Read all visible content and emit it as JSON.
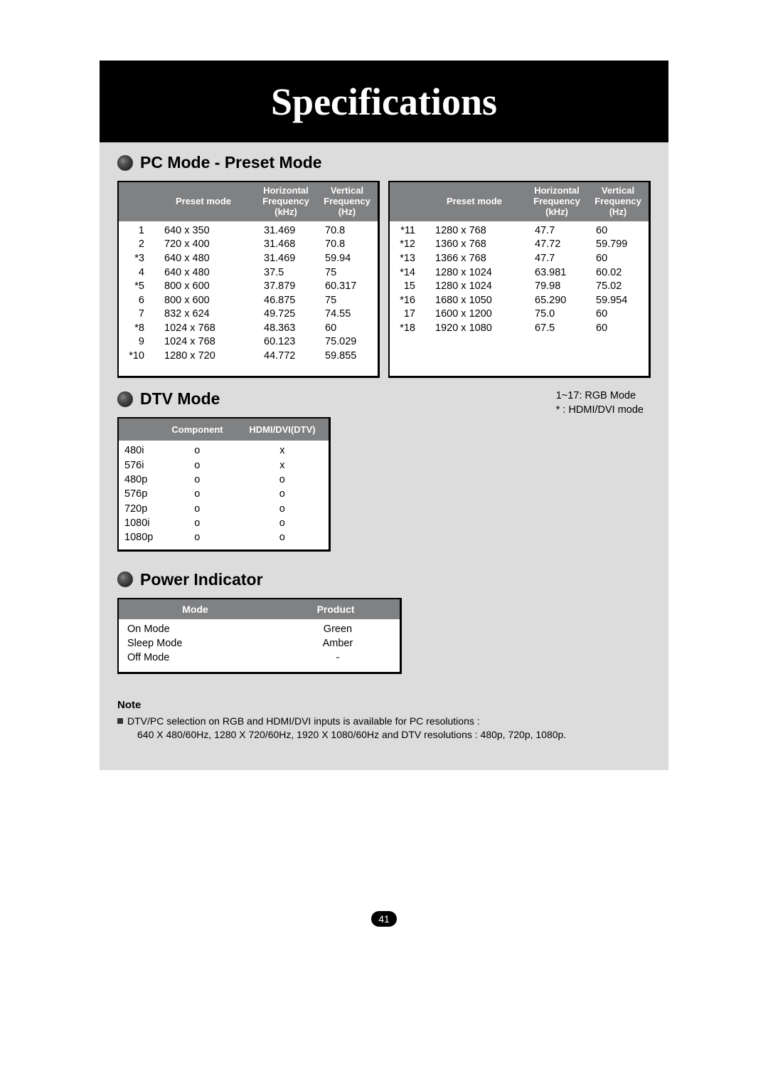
{
  "title": "Specifications",
  "pc_mode": {
    "heading": "PC Mode - Preset Mode",
    "header_preset": "Preset mode",
    "header_horiz_l1": "Horizontal",
    "header_horiz_l2": "Frequency",
    "header_horiz_l3": "(kHz)",
    "header_vert_l1": "Vertical",
    "header_vert_l2": "Frequency",
    "header_vert_l3": "(Hz)",
    "left": [
      {
        "n": "1",
        "res": "640 x 350",
        "h": "31.469",
        "v": "70.8"
      },
      {
        "n": "2",
        "res": "720 x 400",
        "h": "31.468",
        "v": "70.8"
      },
      {
        "n": "*3",
        "res": "640 x 480",
        "h": "31.469",
        "v": "59.94"
      },
      {
        "n": "4",
        "res": "640 x 480",
        "h": "37.5",
        "v": "75"
      },
      {
        "n": "*5",
        "res": "800 x 600",
        "h": "37.879",
        "v": "60.317"
      },
      {
        "n": "6",
        "res": "800 x 600",
        "h": "46.875",
        "v": "75"
      },
      {
        "n": "7",
        "res": "832 x 624",
        "h": "49.725",
        "v": "74.55"
      },
      {
        "n": "*8",
        "res": "1024 x 768",
        "h": "48.363",
        "v": "60"
      },
      {
        "n": "9",
        "res": "1024 x 768",
        "h": "60.123",
        "v": "75.029"
      },
      {
        "n": "*10",
        "res": "1280 x 720",
        "h": "44.772",
        "v": "59.855"
      }
    ],
    "right": [
      {
        "n": "*11",
        "res": "1280 x 768",
        "h": "47.7",
        "v": "60"
      },
      {
        "n": "*12",
        "res": "1360 x 768",
        "h": "47.72",
        "v": "59.799"
      },
      {
        "n": "*13",
        "res": "1366 x 768",
        "h": "47.7",
        "v": "60"
      },
      {
        "n": "*14",
        "res": "1280 x 1024",
        "h": "63.981",
        "v": "60.02"
      },
      {
        "n": "15",
        "res": "1280 x 1024",
        "h": "79.98",
        "v": "75.02"
      },
      {
        "n": "*16",
        "res": "1680 x 1050",
        "h": "65.290",
        "v": "59.954"
      },
      {
        "n": "17",
        "res": "1600 x 1200",
        "h": "75.0",
        "v": "60"
      },
      {
        "n": "*18",
        "res": "1920 x 1080",
        "h": "67.5",
        "v": "60"
      }
    ]
  },
  "dtv": {
    "heading": "DTV Mode",
    "note1": "1~17: RGB Mode",
    "note2": "* : HDMI/DVI mode",
    "col_component": "Component",
    "col_hdmi": "HDMI/DVI(DTV)",
    "rows": [
      {
        "mode": "480i",
        "c": "o",
        "h": "x"
      },
      {
        "mode": "576i",
        "c": "o",
        "h": "x"
      },
      {
        "mode": "480p",
        "c": "o",
        "h": "o"
      },
      {
        "mode": "576p",
        "c": "o",
        "h": "o"
      },
      {
        "mode": "720p",
        "c": "o",
        "h": "o"
      },
      {
        "mode": "1080i",
        "c": "o",
        "h": "o"
      },
      {
        "mode": "1080p",
        "c": "o",
        "h": "o"
      }
    ]
  },
  "power": {
    "heading": "Power Indicator",
    "col_mode": "Mode",
    "col_product": "Product",
    "rows": [
      {
        "mode": "On Mode",
        "val": "Green"
      },
      {
        "mode": "Sleep Mode",
        "val": "Amber"
      },
      {
        "mode": "Off Mode",
        "val": "-"
      }
    ]
  },
  "note": {
    "title": "Note",
    "line1": "DTV/PC selection on RGB and HDMI/DVI inputs is available for PC resolutions :",
    "line2": "640 X 480/60Hz, 1280 X 720/60Hz, 1920 X 1080/60Hz and DTV resolutions : 480p, 720p, 1080p."
  },
  "page_number": "41"
}
